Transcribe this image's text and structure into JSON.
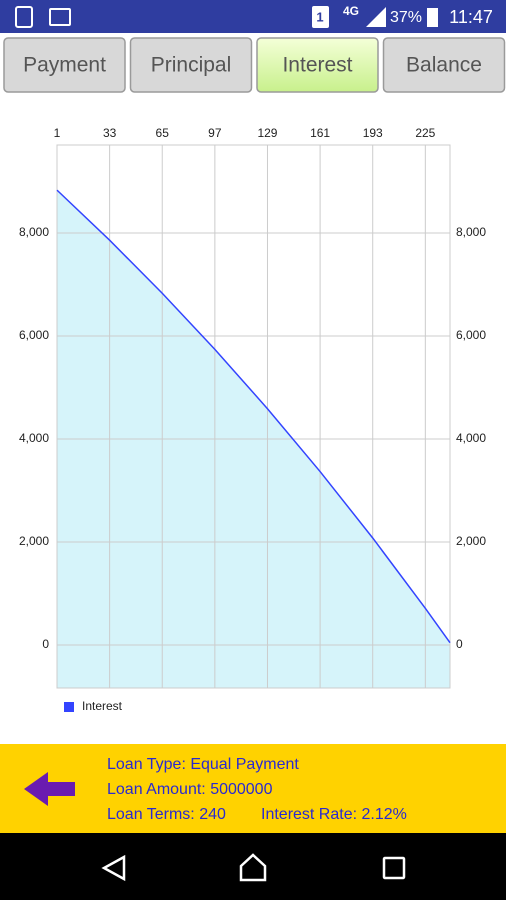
{
  "status_bar": {
    "sim": "1",
    "network": "4G",
    "battery": "37%",
    "time": "11:47"
  },
  "tabs": [
    {
      "label": "Payment",
      "selected": false
    },
    {
      "label": "Principal",
      "selected": false
    },
    {
      "label": "Interest",
      "selected": true
    },
    {
      "label": "Balance",
      "selected": false
    }
  ],
  "chart_data": {
    "type": "area",
    "x": [
      1,
      33,
      65,
      97,
      129,
      161,
      193,
      225,
      240
    ],
    "series": [
      {
        "name": "Interest",
        "color": "#3344ff",
        "fill": "#d6f4fa",
        "values": [
          8833,
          7860,
          6830,
          5741,
          4588,
          3368,
          2078,
          712,
          45
        ]
      }
    ],
    "xlim": [
      1,
      240
    ],
    "xticks": [
      1,
      33,
      65,
      97,
      129,
      161,
      193,
      225
    ],
    "ylim": [
      -835,
      9709
    ],
    "yticks": [
      0,
      {
        "value": 2000,
        "label": "2,000"
      },
      {
        "value": 4000,
        "label": "4,000"
      },
      {
        "value": 6000,
        "label": "6,000"
      },
      {
        "value": 8000,
        "label": "8,000"
      }
    ],
    "grid": true,
    "legend_position": "bottom-left"
  },
  "footer": {
    "loan_type": "Loan Type: Equal Payment",
    "loan_amount": "Loan Amount: 5000000",
    "loan_terms": "Loan Terms: 240",
    "interest_rate": "Interest Rate: 2.12%"
  }
}
